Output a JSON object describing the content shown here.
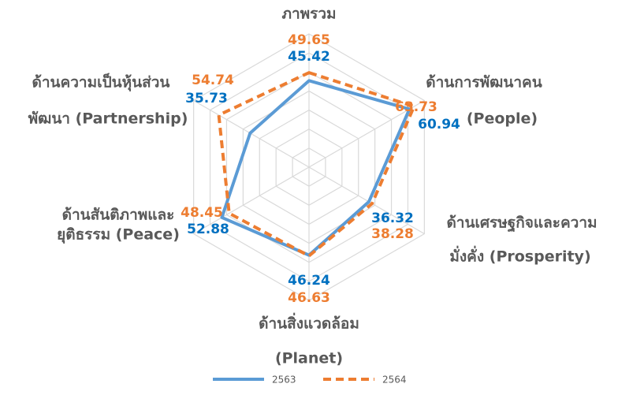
{
  "chart_data": {
    "type": "radar",
    "categories": [
      [
        "ภาพรวม"
      ],
      [
        "ด้านการพัฒนาคน",
        "(People)"
      ],
      [
        "ด้านเศรษฐกิจและความ",
        "มั่งคั่ง (Prosperity)"
      ],
      [
        "ด้านสิ่งแวดล้อม",
        "(Planet)"
      ],
      [
        "ด้านสันติภาพและ",
        "ยุติธรรม (Peace)"
      ],
      [
        "ด้านความเป็นหุ้นส่วน",
        "พัฒนา (Partnership)"
      ]
    ],
    "series": [
      {
        "name": "2563",
        "color": "#5b9bd5",
        "label_color": "#0070c0",
        "dashed": false,
        "values": [
          45.42,
          60.94,
          36.32,
          46.24,
          52.88,
          35.73
        ]
      },
      {
        "name": "2564",
        "color": "#ed7d31",
        "label_color": "#ed7d31",
        "dashed": true,
        "values": [
          49.65,
          63.73,
          38.28,
          46.63,
          48.45,
          54.74
        ]
      }
    ],
    "ylim": [
      0,
      70
    ],
    "yticks": [
      0,
      10,
      20,
      30,
      40,
      50,
      60,
      70
    ],
    "grid": true,
    "legend": "bottom"
  }
}
